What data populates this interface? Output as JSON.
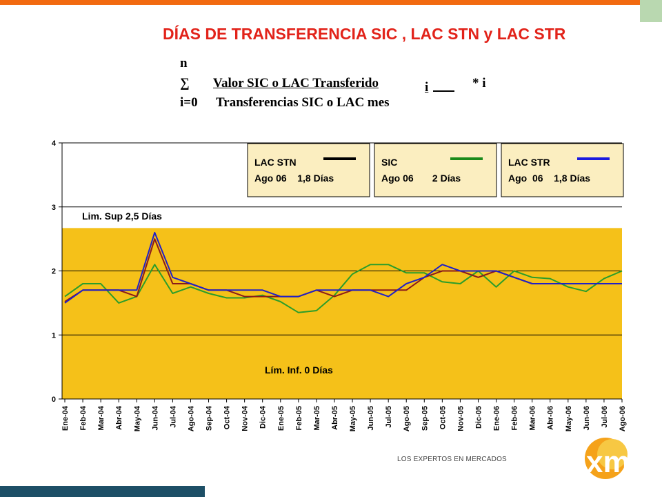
{
  "title": "DÍAS DE TRANSFERENCIA SIC , LAC STN y LAC STR",
  "formula": {
    "n": "n",
    "sum": "∑",
    "numerator": "Valor SIC o LAC Transferido",
    "subscript_i": "i",
    "multiplier": "* i",
    "lower_limit": "i=0",
    "denominator": "Transferencias SIC o LAC mes"
  },
  "brand": {
    "tagline": "LOS EXPERTOS EN MERCADOS",
    "logo_text": "xm"
  },
  "colors": {
    "accent_orange": "#f26a10",
    "title_red": "#e2231a",
    "plot_band": "#f5c119",
    "lac_stn": "#8b1a1a",
    "sic": "#2a9d2a",
    "lac_str": "#2020c8",
    "footer_bar": "#1d4f66"
  },
  "chart_data": {
    "type": "line",
    "categories": [
      "Ene-04",
      "Feb-04",
      "Mar-04",
      "Abr-04",
      "May-04",
      "Jun-04",
      "Jul-04",
      "Ago-04",
      "Sep-04",
      "Oct-04",
      "Nov-04",
      "Dic-04",
      "Ene-05",
      "Feb-05",
      "Mar-05",
      "Abr-05",
      "May-05",
      "Jun-05",
      "Jul-05",
      "Ago-05",
      "Sep-05",
      "Oct-05",
      "Nov-05",
      "Dic-05",
      "Ene-06",
      "Feb-06",
      "Mar-06",
      "Abr-06",
      "May-06",
      "Jun-06",
      "Jul-06",
      "Ago-06"
    ],
    "ylim": [
      0,
      4
    ],
    "yticks": [
      "0",
      "1",
      "2",
      "3",
      "4"
    ],
    "grid": true,
    "band": {
      "from": 0,
      "to": 2.67
    },
    "annotations": {
      "upper_limit": "Lim. Sup 2,5 Días",
      "lower_limit": "Lím. Inf. 0 Días"
    },
    "legend_boxes": [
      {
        "line1": "LAC STN",
        "line2": "Ago 06    1,8 Días",
        "color": "#000000"
      },
      {
        "line1": "SIC",
        "line2": "Ago 06       2 Días",
        "color": "#1a8a1a"
      },
      {
        "line1": "LAC STR",
        "line2": "Ago  06    1,8 Días",
        "color": "#1a1ae0"
      }
    ],
    "series": [
      {
        "name": "SIC",
        "color": "#2a9d2a",
        "values": [
          1.6,
          1.8,
          1.8,
          1.5,
          1.6,
          2.1,
          1.65,
          1.75,
          1.65,
          1.58,
          1.58,
          1.62,
          1.52,
          1.35,
          1.38,
          1.62,
          1.95,
          2.1,
          2.1,
          1.97,
          1.97,
          1.83,
          1.8,
          2.0,
          1.75,
          2.0,
          1.9,
          1.88,
          1.75,
          1.68,
          1.88,
          2.0
        ]
      },
      {
        "name": "LAC STN",
        "color": "#8b1a1a",
        "values": [
          1.52,
          1.7,
          1.7,
          1.7,
          1.6,
          2.5,
          1.8,
          1.8,
          1.7,
          1.7,
          1.6,
          1.6,
          1.6,
          1.6,
          1.7,
          1.6,
          1.7,
          1.7,
          1.7,
          1.7,
          1.9,
          2.0,
          2.0,
          1.9,
          2.0,
          1.9,
          1.8,
          1.8,
          1.8,
          1.8,
          1.8,
          1.8
        ]
      },
      {
        "name": "LAC STR",
        "color": "#2020c8",
        "values": [
          1.5,
          1.7,
          1.7,
          1.7,
          1.7,
          2.6,
          1.9,
          1.8,
          1.7,
          1.7,
          1.7,
          1.7,
          1.6,
          1.6,
          1.7,
          1.7,
          1.7,
          1.7,
          1.6,
          1.8,
          1.9,
          2.1,
          2.0,
          2.0,
          2.0,
          1.9,
          1.8,
          1.8,
          1.8,
          1.8,
          1.8,
          1.8
        ]
      }
    ]
  }
}
